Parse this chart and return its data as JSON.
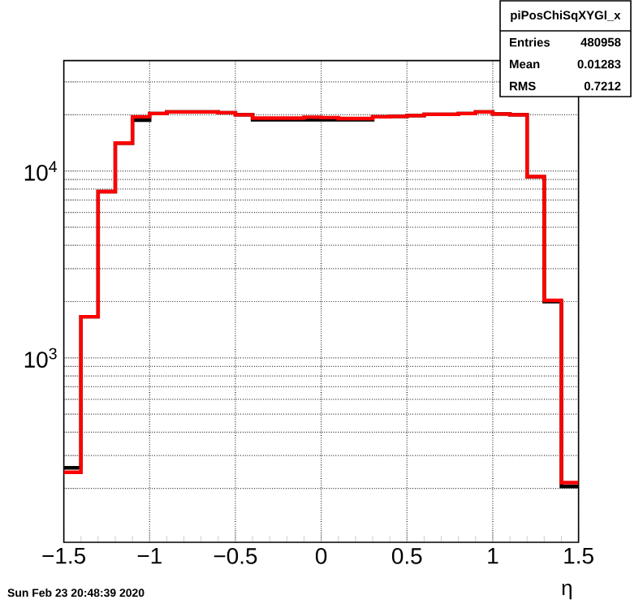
{
  "chart_data": {
    "type": "histogram",
    "xlabel": "η",
    "bins": [
      -1.5,
      -1.4,
      -1.3,
      -1.2,
      -1.1,
      -1.0,
      -0.9,
      -0.8,
      -0.7,
      -0.6,
      -0.5,
      -0.4,
      -0.3,
      -0.2,
      -0.1,
      0.0,
      0.1,
      0.2,
      0.3,
      0.4,
      0.5,
      0.6,
      0.7,
      0.8,
      0.9,
      1.0,
      1.1,
      1.2,
      1.3,
      1.4,
      1.5
    ],
    "series": [
      {
        "color": "#000000",
        "values": [
          258,
          1660,
          7760,
          14100,
          18700,
          20300,
          20700,
          20700,
          20700,
          20500,
          20000,
          18800,
          18800,
          18800,
          18800,
          18800,
          18800,
          18800,
          19500,
          19600,
          19800,
          20100,
          20100,
          20300,
          20700,
          20200,
          20000,
          9300,
          2000,
          205
        ]
      },
      {
        "color": "#ff0000",
        "values": [
          244,
          1660,
          7760,
          14100,
          19500,
          20300,
          20700,
          20700,
          20700,
          20500,
          20000,
          19200,
          19200,
          19200,
          19400,
          19300,
          19100,
          19100,
          19500,
          19600,
          19800,
          20100,
          20100,
          20300,
          20700,
          20200,
          20000,
          9340,
          2030,
          215
        ]
      }
    ],
    "log": "y",
    "xlim": [
      -1.5,
      1.5
    ],
    "ylim": [
      103,
      39000
    ],
    "xticks": [
      {
        "value": -1.5,
        "label": "−1.5"
      },
      {
        "value": -1,
        "label": "−1"
      },
      {
        "value": -0.5,
        "label": "−0.5"
      },
      0,
      0.5,
      1,
      1.5
    ],
    "yticks": [
      {
        "value": 200,
        "label": null
      },
      {
        "value": 300,
        "label": null
      },
      {
        "value": 400,
        "label": null
      },
      {
        "value": 500,
        "label": null
      },
      {
        "value": 600,
        "label": null
      },
      {
        "value": 700,
        "label": null
      },
      {
        "value": 800,
        "label": null
      },
      {
        "value": 900,
        "label": null
      },
      {
        "value": 1000,
        "label": "10$^{3}$"
      },
      {
        "value": 2000,
        "label": null
      },
      {
        "value": 3000,
        "label": null
      },
      {
        "value": 4000,
        "label": null
      },
      {
        "value": 5000,
        "label": null
      },
      {
        "value": 6000,
        "label": null
      },
      {
        "value": 7000,
        "label": null
      },
      {
        "value": 8000,
        "label": null
      },
      {
        "value": 9000,
        "label": null
      },
      {
        "value": 10000,
        "label": "10$^{4}$"
      },
      {
        "value": 20000,
        "label": null
      },
      {
        "value": 30000,
        "label": null
      }
    ],
    "grid": true,
    "annotations": [
      "piPosChiSqXYGl_x",
      "Entries",
      "480958",
      "Mean",
      "0.01283",
      "RMS",
      "0.7212",
      "Sun Feb 23 20:48:39 2020"
    ]
  }
}
